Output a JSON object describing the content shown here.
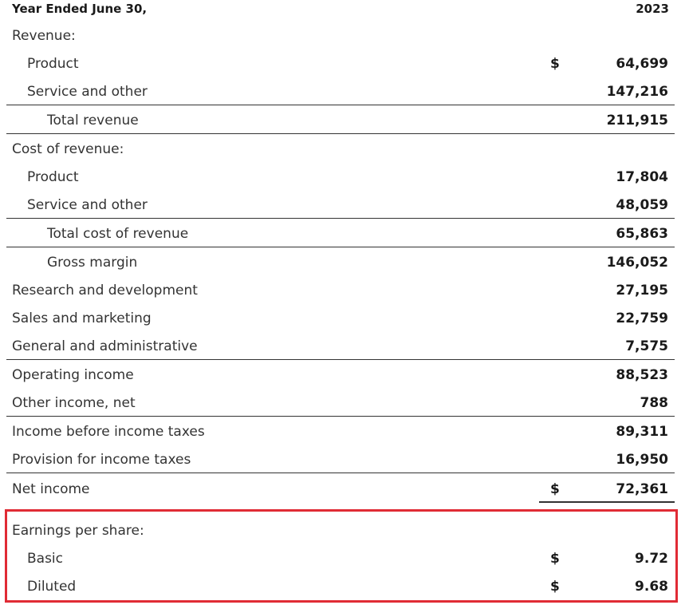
{
  "header": {
    "period_label": "Year Ended June 30,",
    "year": "2023"
  },
  "rows": [
    {
      "label": "Revenue:",
      "currency": "",
      "value": ""
    },
    {
      "label": "Product",
      "currency": "$",
      "value": "64,699"
    },
    {
      "label": "Service and other",
      "currency": "",
      "value": "147,216"
    },
    {
      "label": "Total revenue",
      "currency": "",
      "value": "211,915"
    },
    {
      "label": "Cost of revenue:",
      "currency": "",
      "value": ""
    },
    {
      "label": "Product",
      "currency": "",
      "value": "17,804"
    },
    {
      "label": "Service and other",
      "currency": "",
      "value": "48,059"
    },
    {
      "label": "Total cost of revenue",
      "currency": "",
      "value": "65,863"
    },
    {
      "label": "Gross margin",
      "currency": "",
      "value": "146,052"
    },
    {
      "label": "Research and development",
      "currency": "",
      "value": "27,195"
    },
    {
      "label": "Sales and marketing",
      "currency": "",
      "value": "22,759"
    },
    {
      "label": "General and administrative",
      "currency": "",
      "value": "7,575"
    },
    {
      "label": "Operating income",
      "currency": "",
      "value": "88,523"
    },
    {
      "label": "Other income, net",
      "currency": "",
      "value": "788"
    },
    {
      "label": "Income before income taxes",
      "currency": "",
      "value": "89,311"
    },
    {
      "label": "Provision for income taxes",
      "currency": "",
      "value": "16,950"
    },
    {
      "label": "Net income",
      "currency": "$",
      "value": "72,361"
    },
    {
      "label": "Earnings per share:",
      "currency": "",
      "value": ""
    },
    {
      "label": "Basic",
      "currency": "$",
      "value": "9.72"
    },
    {
      "label": "Diluted",
      "currency": "$",
      "value": "9.68"
    }
  ],
  "highlight_color": "#e02b35"
}
